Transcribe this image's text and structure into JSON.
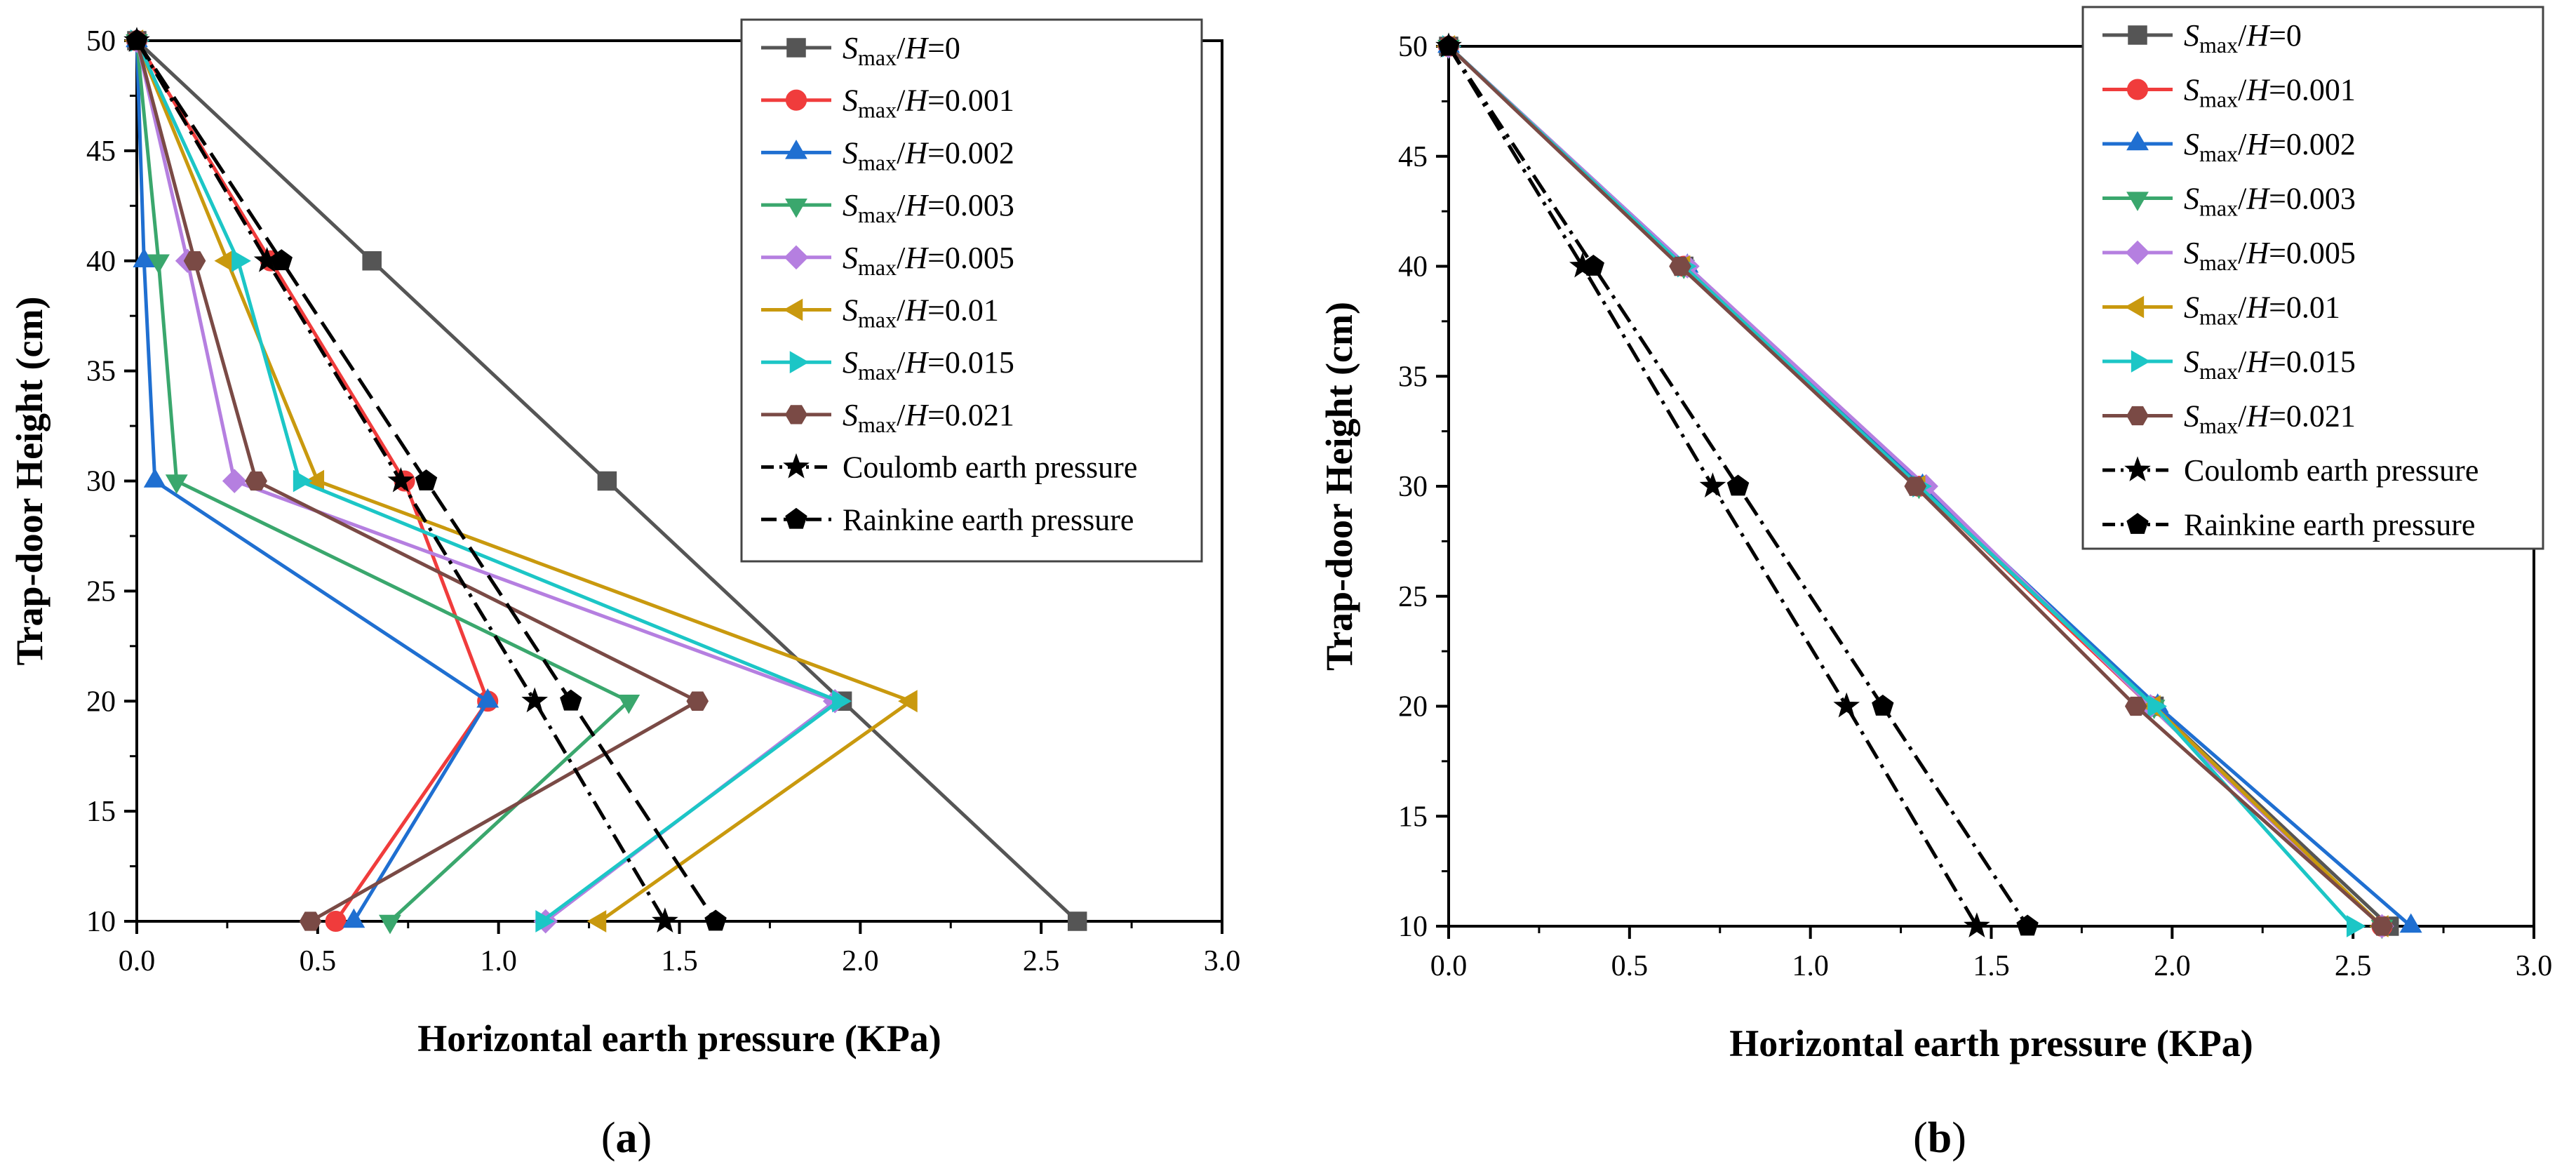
{
  "chart_data": [
    {
      "type": "line",
      "panel_label": [
        "(",
        "a",
        ")"
      ],
      "xlabel": "Horizontal earth pressure (KPa)",
      "ylabel": "Trap-door Height (cm)",
      "xlim": [
        0,
        3
      ],
      "ylim": [
        10,
        50
      ],
      "x_ticks": [
        "0.0",
        "0.5",
        "1.0",
        "1.5",
        "2.0",
        "2.5",
        "3.0"
      ],
      "y_ticks": [
        "10",
        "15",
        "20",
        "25",
        "30",
        "35",
        "40",
        "45",
        "50"
      ],
      "legend_position": "top-right",
      "series": [
        {
          "name": "Smax/H=0",
          "ratio_label": "S",
          "ratio_sub": "max",
          "ratio_var": "H",
          "ratio_value": "=0",
          "color": "#555555",
          "marker": "square",
          "dash": "solid",
          "points": [
            [
              0.0,
              50
            ],
            [
              0.65,
              40
            ],
            [
              1.3,
              30
            ],
            [
              1.95,
              20
            ],
            [
              2.6,
              10
            ]
          ]
        },
        {
          "name": "Smax/H=0.001",
          "ratio_label": "S",
          "ratio_sub": "max",
          "ratio_var": "H",
          "ratio_value": "=0.001",
          "color": "#f03c3c",
          "marker": "circle",
          "dash": "solid",
          "points": [
            [
              0.0,
              50
            ],
            [
              0.37,
              40
            ],
            [
              0.74,
              30
            ],
            [
              0.97,
              20
            ],
            [
              0.55,
              10
            ]
          ]
        },
        {
          "name": "Smax/H=0.002",
          "ratio_label": "S",
          "ratio_sub": "max",
          "ratio_var": "H",
          "ratio_value": "=0.002",
          "color": "#1f6fd1",
          "marker": "triangle-up",
          "dash": "solid",
          "points": [
            [
              0.0,
              50
            ],
            [
              0.02,
              40
            ],
            [
              0.05,
              30
            ],
            [
              0.97,
              20
            ],
            [
              0.6,
              10
            ]
          ]
        },
        {
          "name": "Smax/H=0.003",
          "ratio_label": "S",
          "ratio_sub": "max",
          "ratio_var": "H",
          "ratio_value": "=0.003",
          "color": "#3aa76d",
          "marker": "triangle-down",
          "dash": "solid",
          "points": [
            [
              0.0,
              50
            ],
            [
              0.06,
              40
            ],
            [
              0.11,
              30
            ],
            [
              1.36,
              20
            ],
            [
              0.7,
              10
            ]
          ]
        },
        {
          "name": "Smax/H=0.005",
          "ratio_label": "S",
          "ratio_sub": "max",
          "ratio_var": "H",
          "ratio_value": "=0.005",
          "color": "#b57fe0",
          "marker": "diamond",
          "dash": "solid",
          "points": [
            [
              0.0,
              50
            ],
            [
              0.14,
              40
            ],
            [
              0.27,
              30
            ],
            [
              1.93,
              20
            ],
            [
              1.13,
              10
            ]
          ]
        },
        {
          "name": "Smax/H=0.01",
          "ratio_label": "S",
          "ratio_sub": "max",
          "ratio_var": "H",
          "ratio_value": "=0.01",
          "color": "#c9990e",
          "marker": "triangle-left",
          "dash": "solid",
          "points": [
            [
              0.0,
              50
            ],
            [
              0.25,
              40
            ],
            [
              0.5,
              30
            ],
            [
              2.14,
              20
            ],
            [
              1.28,
              10
            ]
          ]
        },
        {
          "name": "Smax/H=0.015",
          "ratio_label": "S",
          "ratio_sub": "max",
          "ratio_var": "H",
          "ratio_value": "=0.015",
          "color": "#1cc6c6",
          "marker": "triangle-right",
          "dash": "solid",
          "points": [
            [
              0.0,
              50
            ],
            [
              0.28,
              40
            ],
            [
              0.45,
              30
            ],
            [
              1.94,
              20
            ],
            [
              1.12,
              10
            ]
          ]
        },
        {
          "name": "Smax/H=0.021",
          "ratio_label": "S",
          "ratio_sub": "max",
          "ratio_var": "H",
          "ratio_value": "=0.021",
          "color": "#7a4a45",
          "marker": "hexagon",
          "dash": "solid",
          "points": [
            [
              0.0,
              50
            ],
            [
              0.16,
              40
            ],
            [
              0.33,
              30
            ],
            [
              1.55,
              20
            ],
            [
              0.48,
              10
            ]
          ]
        },
        {
          "name": "Coulomb earth pressure",
          "plain_label": "Coulomb earth pressure",
          "color": "#000000",
          "marker": "star",
          "dash": "dashdot",
          "points": [
            [
              0.0,
              50
            ],
            [
              0.36,
              40
            ],
            [
              0.73,
              30
            ],
            [
              1.1,
              20
            ],
            [
              1.46,
              10
            ]
          ]
        },
        {
          "name": "Rainkine earth pressure",
          "plain_label": "Rainkine earth pressure",
          "color": "#000000",
          "marker": "pentagon",
          "dash": "dash",
          "points": [
            [
              0.0,
              50
            ],
            [
              0.4,
              40
            ],
            [
              0.8,
              30
            ],
            [
              1.2,
              20
            ],
            [
              1.6,
              10
            ]
          ]
        }
      ]
    },
    {
      "type": "line",
      "panel_label": [
        "(",
        "b",
        ")"
      ],
      "xlabel": "Horizontal earth pressure (KPa)",
      "ylabel": "Trap-door Height (cm)",
      "xlim": [
        0,
        3
      ],
      "ylim": [
        10,
        50
      ],
      "x_ticks": [
        "0.0",
        "0.5",
        "1.0",
        "1.5",
        "2.0",
        "2.5",
        "3.0"
      ],
      "y_ticks": [
        "10",
        "15",
        "20",
        "25",
        "30",
        "35",
        "40",
        "45",
        "50"
      ],
      "legend_position": "top-right",
      "series": [
        {
          "name": "Smax/H=0",
          "ratio_label": "S",
          "ratio_sub": "max",
          "ratio_var": "H",
          "ratio_value": "=0",
          "color": "#555555",
          "marker": "square",
          "dash": "solid",
          "points": [
            [
              0.0,
              50
            ],
            [
              0.65,
              40
            ],
            [
              1.3,
              30
            ],
            [
              1.95,
              20
            ],
            [
              2.6,
              10
            ]
          ]
        },
        {
          "name": "Smax/H=0.001",
          "ratio_label": "S",
          "ratio_sub": "max",
          "ratio_var": "H",
          "ratio_value": "=0.001",
          "color": "#f03c3c",
          "marker": "circle",
          "dash": "solid",
          "points": [
            [
              0.0,
              50
            ],
            [
              0.65,
              40
            ],
            [
              1.3,
              30
            ],
            [
              1.94,
              20
            ],
            [
              2.58,
              10
            ]
          ]
        },
        {
          "name": "Smax/H=0.002",
          "ratio_label": "S",
          "ratio_sub": "max",
          "ratio_var": "H",
          "ratio_value": "=0.002",
          "color": "#1f6fd1",
          "marker": "triangle-up",
          "dash": "solid",
          "points": [
            [
              0.0,
              50
            ],
            [
              0.66,
              40
            ],
            [
              1.31,
              30
            ],
            [
              1.96,
              20
            ],
            [
              2.66,
              10
            ]
          ]
        },
        {
          "name": "Smax/H=0.003",
          "ratio_label": "S",
          "ratio_sub": "max",
          "ratio_var": "H",
          "ratio_value": "=0.003",
          "color": "#3aa76d",
          "marker": "triangle-down",
          "dash": "solid",
          "points": [
            [
              0.0,
              50
            ],
            [
              0.65,
              40
            ],
            [
              1.3,
              30
            ],
            [
              1.95,
              20
            ],
            [
              2.58,
              10
            ]
          ]
        },
        {
          "name": "Smax/H=0.005",
          "ratio_label": "S",
          "ratio_sub": "max",
          "ratio_var": "H",
          "ratio_value": "=0.005",
          "color": "#b57fe0",
          "marker": "diamond",
          "dash": "solid",
          "points": [
            [
              0.0,
              50
            ],
            [
              0.66,
              40
            ],
            [
              1.32,
              30
            ],
            [
              1.94,
              20
            ],
            [
              2.58,
              10
            ]
          ]
        },
        {
          "name": "Smax/H=0.01",
          "ratio_label": "S",
          "ratio_sub": "max",
          "ratio_var": "H",
          "ratio_value": "=0.01",
          "color": "#c9990e",
          "marker": "triangle-left",
          "dash": "solid",
          "points": [
            [
              0.0,
              50
            ],
            [
              0.65,
              40
            ],
            [
              1.3,
              30
            ],
            [
              1.95,
              20
            ],
            [
              2.58,
              10
            ]
          ]
        },
        {
          "name": "Smax/H=0.015",
          "ratio_label": "S",
          "ratio_sub": "max",
          "ratio_var": "H",
          "ratio_value": "=0.015",
          "color": "#1cc6c6",
          "marker": "triangle-right",
          "dash": "solid",
          "points": [
            [
              0.0,
              50
            ],
            [
              0.65,
              40
            ],
            [
              1.3,
              30
            ],
            [
              1.95,
              20
            ],
            [
              2.5,
              10
            ]
          ]
        },
        {
          "name": "Smax/H=0.021",
          "ratio_label": "S",
          "ratio_sub": "max",
          "ratio_var": "H",
          "ratio_value": "=0.021",
          "color": "#7a4a45",
          "marker": "hexagon",
          "dash": "solid",
          "points": [
            [
              0.0,
              50
            ],
            [
              0.64,
              40
            ],
            [
              1.29,
              30
            ],
            [
              1.9,
              20
            ],
            [
              2.58,
              10
            ]
          ]
        },
        {
          "name": "Coulomb earth pressure",
          "plain_label": "Coulomb earth pressure",
          "color": "#000000",
          "marker": "star",
          "dash": "dashdot",
          "points": [
            [
              0.0,
              50
            ],
            [
              0.37,
              40
            ],
            [
              0.73,
              30
            ],
            [
              1.1,
              20
            ],
            [
              1.46,
              10
            ]
          ]
        },
        {
          "name": "Rainkine earth pressure",
          "plain_label": "Rainkine earth pressure",
          "color": "#000000",
          "marker": "pentagon",
          "dash": "dashdot",
          "points": [
            [
              0.0,
              50
            ],
            [
              0.4,
              40
            ],
            [
              0.8,
              30
            ],
            [
              1.2,
              20
            ],
            [
              1.6,
              10
            ]
          ]
        }
      ]
    }
  ]
}
